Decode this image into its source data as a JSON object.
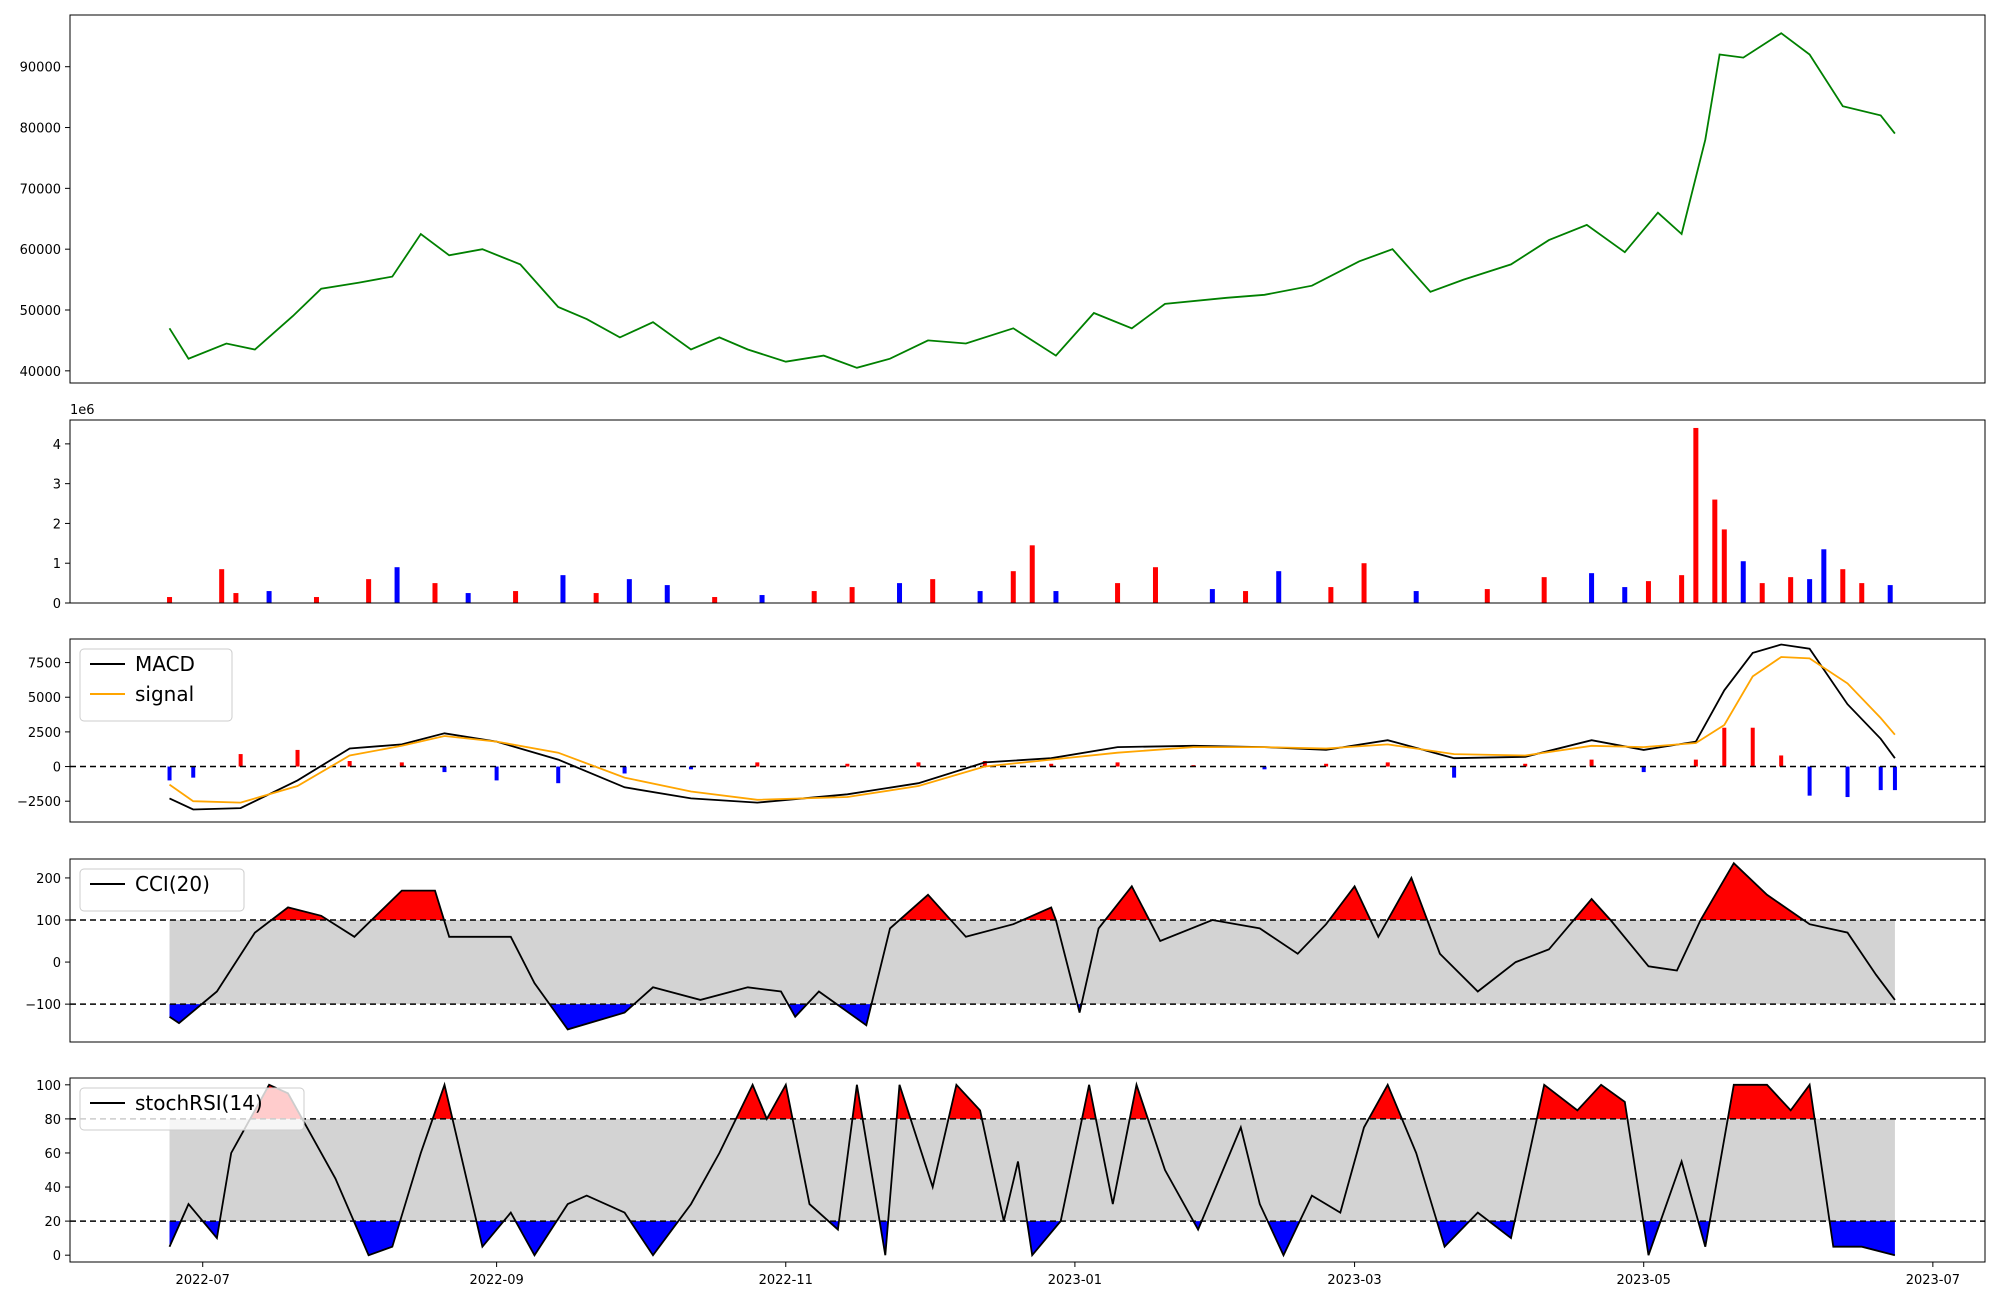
{
  "chart_data": [
    {
      "type": "line",
      "panel": "price",
      "ylim": [
        38000,
        98500
      ],
      "yticks": [
        "40000",
        "50000",
        "60000",
        "70000",
        "80000",
        "90000"
      ],
      "color": "#008000",
      "x": [
        "2022-06-24",
        "2022-06-28",
        "2022-07-06",
        "2022-07-12",
        "2022-07-20",
        "2022-07-26",
        "2022-08-03",
        "2022-08-10",
        "2022-08-16",
        "2022-08-22",
        "2022-08-29",
        "2022-09-06",
        "2022-09-14",
        "2022-09-20",
        "2022-09-27",
        "2022-10-04",
        "2022-10-12",
        "2022-10-18",
        "2022-10-24",
        "2022-11-01",
        "2022-11-09",
        "2022-11-16",
        "2022-11-23",
        "2022-12-01",
        "2022-12-09",
        "2022-12-19",
        "2022-12-28",
        "2023-01-05",
        "2023-01-13",
        "2023-01-20",
        "2023-02-02",
        "2023-02-10",
        "2023-02-20",
        "2023-03-02",
        "2023-03-09",
        "2023-03-17",
        "2023-03-24",
        "2023-04-03",
        "2023-04-11",
        "2023-04-19",
        "2023-04-27",
        "2023-05-04",
        "2023-05-09",
        "2023-05-14",
        "2023-05-17",
        "2023-05-22",
        "2023-05-30",
        "2023-06-05",
        "2023-06-12",
        "2023-06-20",
        "2023-06-23"
      ],
      "y": [
        47000,
        42000,
        44500,
        43500,
        49000,
        53500,
        54500,
        55500,
        62500,
        59000,
        60000,
        57500,
        50500,
        48500,
        45500,
        48000,
        43500,
        45500,
        43500,
        41500,
        42500,
        40500,
        42000,
        45000,
        44500,
        47000,
        42500,
        49500,
        47000,
        51000,
        52000,
        52500,
        54000,
        58000,
        60000,
        53000,
        55000,
        57500,
        61500,
        64000,
        59500,
        66000,
        62500,
        78000,
        92000,
        91500,
        95500,
        92000,
        83500,
        82000,
        79000
      ]
    },
    {
      "type": "bar",
      "panel": "volume",
      "offset_label": "1e6",
      "ylim": [
        0,
        4600000
      ],
      "yticks": [
        "0",
        "1",
        "2",
        "3",
        "4"
      ],
      "colors": {
        "up": "#ff0000",
        "down": "#0000ff",
        "flat": "#000000"
      },
      "x": [
        "2022-06-24",
        "2022-07-05",
        "2022-07-08",
        "2022-07-15",
        "2022-07-25",
        "2022-08-05",
        "2022-08-11",
        "2022-08-19",
        "2022-08-26",
        "2022-09-05",
        "2022-09-15",
        "2022-09-22",
        "2022-09-29",
        "2022-10-07",
        "2022-10-17",
        "2022-10-27",
        "2022-11-07",
        "2022-11-15",
        "2022-11-25",
        "2022-12-02",
        "2022-12-12",
        "2022-12-19",
        "2022-12-23",
        "2022-12-28",
        "2023-01-10",
        "2023-01-18",
        "2023-01-30",
        "2023-02-06",
        "2023-02-13",
        "2023-02-24",
        "2023-03-03",
        "2023-03-14",
        "2023-03-29",
        "2023-04-10",
        "2023-04-20",
        "2023-04-27",
        "2023-05-02",
        "2023-05-09",
        "2023-05-12",
        "2023-05-16",
        "2023-05-18",
        "2023-05-22",
        "2023-05-26",
        "2023-06-01",
        "2023-06-05",
        "2023-06-08",
        "2023-06-12",
        "2023-06-16",
        "2023-06-22"
      ],
      "values": [
        150000,
        850000,
        250000,
        300000,
        150000,
        600000,
        900000,
        500000,
        250000,
        300000,
        700000,
        250000,
        600000,
        450000,
        150000,
        200000,
        300000,
        400000,
        500000,
        600000,
        300000,
        800000,
        1450000,
        300000,
        500000,
        900000,
        350000,
        300000,
        800000,
        400000,
        1000000,
        300000,
        350000,
        650000,
        750000,
        400000,
        550000,
        700000,
        4400000,
        2600000,
        1850000,
        1050000,
        500000,
        650000,
        600000,
        1350000,
        850000,
        500000,
        450000
      ],
      "direction": [
        "up",
        "up",
        "up",
        "down",
        "up",
        "up",
        "down",
        "up",
        "down",
        "up",
        "down",
        "up",
        "down",
        "down",
        "up",
        "down",
        "up",
        "up",
        "down",
        "up",
        "down",
        "up",
        "up",
        "down",
        "up",
        "up",
        "down",
        "up",
        "down",
        "up",
        "up",
        "down",
        "up",
        "up",
        "down",
        "down",
        "up",
        "up",
        "up",
        "up",
        "up",
        "down",
        "up",
        "up",
        "down",
        "down",
        "up",
        "up",
        "down"
      ]
    },
    {
      "type": "line",
      "panel": "macd",
      "ylim": [
        -4000,
        9200
      ],
      "yticks": [
        "−2500",
        "0",
        "2500",
        "5000",
        "7500"
      ],
      "legend": [
        "MACD",
        "signal"
      ],
      "legend_position": "top-left",
      "colors": {
        "MACD": "#000000",
        "signal": "#ffa500",
        "hist_up": "#ff0000",
        "hist_down": "#0000ff"
      },
      "x": [
        "2022-06-24",
        "2022-06-29",
        "2022-07-09",
        "2022-07-21",
        "2022-08-01",
        "2022-08-12",
        "2022-08-21",
        "2022-09-01",
        "2022-09-14",
        "2022-09-28",
        "2022-10-12",
        "2022-10-26",
        "2022-11-14",
        "2022-11-29",
        "2022-12-13",
        "2022-12-27",
        "2023-01-10",
        "2023-01-26",
        "2023-02-10",
        "2023-02-23",
        "2023-03-08",
        "2023-03-22",
        "2023-04-06",
        "2023-04-20",
        "2023-05-01",
        "2023-05-12",
        "2023-05-18",
        "2023-05-24",
        "2023-05-30",
        "2023-06-05",
        "2023-06-13",
        "2023-06-20",
        "2023-06-23"
      ],
      "series": [
        {
          "name": "MACD",
          "values": [
            -2300,
            -3100,
            -3000,
            -1000,
            1300,
            1600,
            2400,
            1800,
            500,
            -1500,
            -2300,
            -2600,
            -2000,
            -1200,
            300,
            600,
            1400,
            1500,
            1400,
            1200,
            1900,
            600,
            700,
            1900,
            1200,
            1800,
            5500,
            8200,
            8800,
            8500,
            4500,
            2000,
            600
          ]
        },
        {
          "name": "signal",
          "values": [
            -1300,
            -2500,
            -2600,
            -1400,
            800,
            1500,
            2200,
            1800,
            1000,
            -800,
            -1800,
            -2400,
            -2200,
            -1400,
            0,
            500,
            1000,
            1400,
            1400,
            1300,
            1600,
            900,
            800,
            1500,
            1400,
            1700,
            3000,
            6500,
            7900,
            7800,
            6000,
            3500,
            2300
          ]
        }
      ],
      "histogram": [
        -1000,
        -800,
        900,
        1200,
        400,
        300,
        -400,
        -1000,
        -1200,
        -500,
        -200,
        300,
        200,
        300,
        400,
        200,
        300,
        100,
        -200,
        200,
        300,
        -800,
        200,
        500,
        -400,
        500,
        2800,
        2800,
        800,
        -2100,
        -2200,
        -1700,
        -1700
      ]
    },
    {
      "type": "line",
      "panel": "cci",
      "ylim": [
        -190,
        245
      ],
      "yticks": [
        "−100",
        "0",
        "100",
        "200"
      ],
      "levels": [
        100,
        -100
      ],
      "legend": [
        "CCI(20)"
      ],
      "legend_position": "top-left",
      "colors": {
        "line": "#000000",
        "above": "#ff0000",
        "below": "#0000ff",
        "band": "#d3d3d3"
      },
      "x": [
        "2022-06-24",
        "2022-06-26",
        "2022-07-04",
        "2022-07-12",
        "2022-07-19",
        "2022-07-26",
        "2022-08-02",
        "2022-08-12",
        "2022-08-19",
        "2022-08-22",
        "2022-09-04",
        "2022-09-09",
        "2022-09-16",
        "2022-09-28",
        "2022-10-04",
        "2022-10-14",
        "2022-10-24",
        "2022-10-31",
        "2022-11-03",
        "2022-11-08",
        "2022-11-18",
        "2022-11-23",
        "2022-12-01",
        "2022-12-09",
        "2022-12-19",
        "2022-12-27",
        "2022-12-28",
        "2023-01-02",
        "2023-01-06",
        "2023-01-13",
        "2023-01-19",
        "2023-01-30",
        "2023-02-09",
        "2023-02-17",
        "2023-02-23",
        "2023-03-01",
        "2023-03-06",
        "2023-03-13",
        "2023-03-19",
        "2023-03-27",
        "2023-04-04",
        "2023-04-11",
        "2023-04-20",
        "2023-04-24",
        "2023-05-02",
        "2023-05-08",
        "2023-05-13",
        "2023-05-20",
        "2023-05-27",
        "2023-06-05",
        "2023-06-13",
        "2023-06-19",
        "2023-06-23"
      ],
      "values": [
        -130,
        -145,
        -70,
        70,
        130,
        110,
        60,
        170,
        170,
        60,
        60,
        -50,
        -160,
        -120,
        -60,
        -90,
        -60,
        -70,
        -130,
        -70,
        -150,
        80,
        160,
        60,
        90,
        130,
        100,
        -120,
        80,
        180,
        50,
        100,
        80,
        20,
        90,
        180,
        60,
        200,
        20,
        -70,
        0,
        30,
        150,
        100,
        -10,
        -20,
        100,
        235,
        160,
        90,
        70,
        -30,
        -90
      ]
    },
    {
      "type": "line",
      "panel": "stochrsi",
      "ylim": [
        -4,
        104
      ],
      "yticks": [
        "0",
        "20",
        "40",
        "60",
        "80",
        "100"
      ],
      "levels": [
        80,
        20
      ],
      "legend": [
        "stochRSI(14)"
      ],
      "legend_position": "top-left",
      "colors": {
        "line": "#000000",
        "above": "#ff0000",
        "below": "#0000ff",
        "band": "#d3d3d3"
      },
      "x": [
        "2022-06-24",
        "2022-06-28",
        "2022-07-04",
        "2022-07-07",
        "2022-07-15",
        "2022-07-19",
        "2022-07-29",
        "2022-08-05",
        "2022-08-10",
        "2022-08-16",
        "2022-08-21",
        "2022-08-29",
        "2022-09-04",
        "2022-09-09",
        "2022-09-16",
        "2022-09-20",
        "2022-09-28",
        "2022-10-04",
        "2022-10-12",
        "2022-10-18",
        "2022-10-25",
        "2022-10-28",
        "2022-11-01",
        "2022-11-06",
        "2022-11-12",
        "2022-11-16",
        "2022-11-22",
        "2022-11-25",
        "2022-12-02",
        "2022-12-07",
        "2022-12-12",
        "2022-12-17",
        "2022-12-20",
        "2022-12-23",
        "2022-12-29",
        "2023-01-04",
        "2023-01-09",
        "2023-01-14",
        "2023-01-20",
        "2023-01-27",
        "2023-02-05",
        "2023-02-09",
        "2023-02-14",
        "2023-02-20",
        "2023-02-26",
        "2023-03-03",
        "2023-03-08",
        "2023-03-14",
        "2023-03-20",
        "2023-03-27",
        "2023-04-03",
        "2023-04-10",
        "2023-04-17",
        "2023-04-22",
        "2023-04-27",
        "2023-05-02",
        "2023-05-09",
        "2023-05-14",
        "2023-05-20",
        "2023-05-27",
        "2023-06-01",
        "2023-06-05",
        "2023-06-10",
        "2023-06-16",
        "2023-06-23"
      ],
      "values": [
        5,
        30,
        10,
        60,
        100,
        95,
        45,
        0,
        5,
        60,
        100,
        5,
        25,
        0,
        30,
        35,
        25,
        0,
        30,
        60,
        100,
        80,
        100,
        30,
        15,
        100,
        0,
        100,
        40,
        100,
        85,
        20,
        55,
        0,
        20,
        100,
        30,
        100,
        50,
        15,
        75,
        30,
        0,
        35,
        25,
        75,
        100,
        60,
        5,
        25,
        10,
        100,
        85,
        100,
        90,
        0,
        55,
        5,
        100,
        100,
        85,
        100,
        5,
        5,
        0
      ]
    }
  ],
  "x_axis": {
    "ticks": [
      "2022-07",
      "2022-09",
      "2022-11",
      "2023-01",
      "2023-03",
      "2023-05",
      "2023-07"
    ],
    "range": [
      "2022-06-03",
      "2023-07-12"
    ]
  }
}
